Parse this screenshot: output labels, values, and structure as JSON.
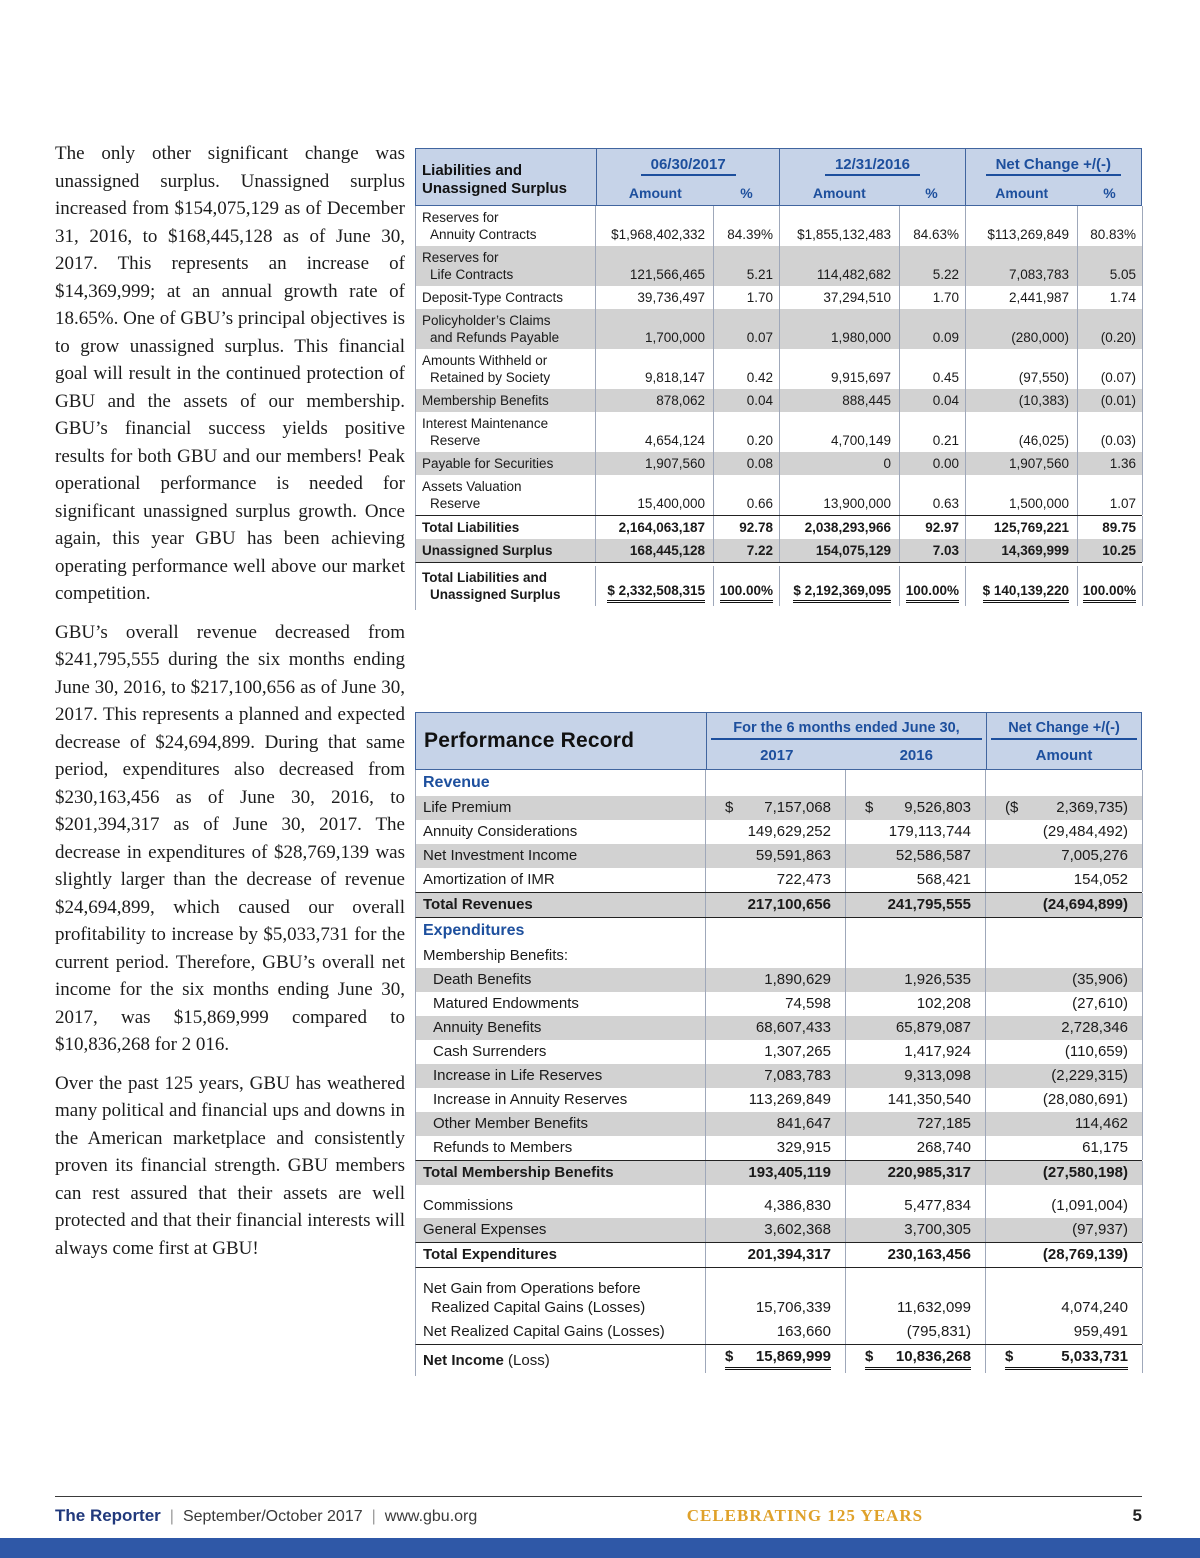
{
  "article": {
    "paragraphs": [
      "The only other significant change was unassigned surplus. Unassigned surplus increased from $154,075,129 as of December 31, 2016, to $168,445,128 as of June 30, 2017. This represents an increase of $14,369,999; at an annual growth rate of 18.65%. One of GBU’s principal objectives is to grow unassigned surplus. This financial goal will result in the continued protection of GBU and the assets of our membership. GBU’s financial success yields positive results for both GBU and our members! Peak operational performance is needed for significant unassigned surplus growth. Once again, this year GBU has been achieving operating performance well above our market competition.",
      "GBU’s overall revenue decreased from $241,795,555 during the six months ending June 30, 2016, to $217,100,656 as of June 30, 2017. This represents a planned and expected decrease of $24,694,899. During that same period, expenditures also decreased from $230,163,456 as of June 30, 2016, to $201,394,317 as of June 30, 2017. The decrease in expenditures of $28,769,139 was slightly larger than the decrease of revenue $24,694,899, which caused our overall profitability to increase by $5,033,731 for the current period. Therefore, GBU’s overall net income for the six months ending June 30, 2017, was $15,869,999 compared to $10,836,268 for 2 016.",
      "Over the past 125 years, GBU has weathered many political and financial ups and downs in the American marketplace and consistently proven its financial strength. GBU members can rest assured that their assets are well protected and that their financial interests will always come first at GBU!"
    ]
  },
  "liabilities_table": {
    "title": [
      "Liabilities and",
      "Unassigned Surplus"
    ],
    "groups": [
      {
        "label": "06/30/2017",
        "subs": [
          "Amount",
          "%"
        ]
      },
      {
        "label": "12/31/2016",
        "subs": [
          "Amount",
          "%"
        ]
      },
      {
        "label": "Net Change +/(-)",
        "subs": [
          "Amount",
          "%"
        ]
      }
    ],
    "rows": [
      {
        "label": [
          "Reserves for",
          "Annuity Contracts"
        ],
        "cells": [
          "$1,968,402,332",
          "84.39%",
          "$1,855,132,483",
          "84.63%",
          "$113,269,849",
          "80.83%"
        ]
      },
      {
        "label": [
          "Reserves for",
          "Life Contracts"
        ],
        "stripe": true,
        "cells": [
          "121,566,465",
          "5.21",
          "114,482,682",
          "5.22",
          "7,083,783",
          "5.05"
        ]
      },
      {
        "label": [
          "Deposit-Type Contracts"
        ],
        "cells": [
          "39,736,497",
          "1.70",
          "37,294,510",
          "1.70",
          "2,441,987",
          "1.74"
        ]
      },
      {
        "label": [
          "Policyholder’s Claims",
          "and Refunds Payable"
        ],
        "stripe": true,
        "cells": [
          "1,700,000",
          "0.07",
          "1,980,000",
          "0.09",
          "(280,000)",
          "(0.20)"
        ]
      },
      {
        "label": [
          "Amounts Withheld or",
          "Retained by Society"
        ],
        "cells": [
          "9,818,147",
          "0.42",
          "9,915,697",
          "0.45",
          "(97,550)",
          "(0.07)"
        ]
      },
      {
        "label": [
          "Membership Benefits"
        ],
        "stripe": true,
        "cells": [
          "878,062",
          "0.04",
          "888,445",
          "0.04",
          "(10,383)",
          "(0.01)"
        ]
      },
      {
        "label": [
          "Interest Maintenance",
          "Reserve"
        ],
        "cells": [
          "4,654,124",
          "0.20",
          "4,700,149",
          "0.21",
          "(46,025)",
          "(0.03)"
        ]
      },
      {
        "label": [
          "Payable for Securities"
        ],
        "stripe": true,
        "cells": [
          "1,907,560",
          "0.08",
          "0",
          "0.00",
          "1,907,560",
          "1.36"
        ]
      },
      {
        "label": [
          "Assets Valuation",
          "Reserve"
        ],
        "cells": [
          "15,400,000",
          "0.66",
          "13,900,000",
          "0.63",
          "1,500,000",
          "1.07"
        ]
      },
      {
        "label": [
          "Total Liabilities"
        ],
        "bold": true,
        "top": true,
        "cells": [
          "2,164,063,187",
          "92.78",
          "2,038,293,966",
          "92.97",
          "125,769,221",
          "89.75"
        ]
      },
      {
        "label": [
          "Unassigned Surplus"
        ],
        "bold": true,
        "stripe": true,
        "cells": [
          "168,445,128",
          "7.22",
          "154,075,129",
          "7.03",
          "14,369,999",
          "10.25"
        ]
      },
      {
        "label": [
          "Total Liabilities and",
          "Unassigned Surplus"
        ],
        "bold": true,
        "top": true,
        "dbl": true,
        "cells": [
          "$ 2,332,508,315",
          "100.00%",
          "$ 2,192,369,095",
          "100.00%",
          "$ 140,139,220",
          "100.00%"
        ]
      }
    ]
  },
  "performance_table": {
    "title": "Performance Record",
    "period_header": "For the 6 months ended June 30,",
    "period_cols": [
      "2017",
      "2016"
    ],
    "change_header": "Net Change +/(-)",
    "change_col": "Amount",
    "rows": [
      {
        "type": "section",
        "label": "Revenue"
      },
      {
        "type": "data",
        "stripe": true,
        "label": "Life Premium",
        "cells": [
          {
            "pre": "$",
            "val": "7,157,068"
          },
          {
            "pre": "$",
            "val": "9,526,803"
          },
          {
            "pre": "($",
            "val": "2,369,735)"
          }
        ]
      },
      {
        "type": "data",
        "label": "Annuity Considerations",
        "cells": [
          "149,629,252",
          "179,113,744",
          "(29,484,492)"
        ]
      },
      {
        "type": "data",
        "stripe": true,
        "label": "Net Investment Income",
        "cells": [
          "59,591,863",
          "52,586,587",
          "7,005,276"
        ]
      },
      {
        "type": "data",
        "label": "Amortization of IMR",
        "cells": [
          "722,473",
          "568,421",
          "154,052"
        ]
      },
      {
        "type": "data",
        "bold": true,
        "stripe": true,
        "top": true,
        "bottom": true,
        "label": "Total Revenues",
        "cells": [
          "217,100,656",
          "241,795,555",
          "(24,694,899)"
        ]
      },
      {
        "type": "section",
        "label": "Expenditures"
      },
      {
        "type": "plain",
        "label": "Membership Benefits:"
      },
      {
        "type": "data",
        "stripe": true,
        "indent": true,
        "label": "Death Benefits",
        "cells": [
          "1,890,629",
          "1,926,535",
          "(35,906)"
        ]
      },
      {
        "type": "data",
        "indent": true,
        "label": "Matured Endowments",
        "cells": [
          "74,598",
          "102,208",
          "(27,610)"
        ]
      },
      {
        "type": "data",
        "stripe": true,
        "indent": true,
        "label": "Annuity Benefits",
        "cells": [
          "68,607,433",
          "65,879,087",
          "2,728,346"
        ]
      },
      {
        "type": "data",
        "indent": true,
        "label": "Cash Surrenders",
        "cells": [
          "1,307,265",
          "1,417,924",
          "(110,659)"
        ]
      },
      {
        "type": "data",
        "stripe": true,
        "indent": true,
        "label": "Increase in Life Reserves",
        "cells": [
          "7,083,783",
          "9,313,098",
          "(2,229,315)"
        ]
      },
      {
        "type": "data",
        "indent": true,
        "label": "Increase in Annuity Reserves",
        "cells": [
          "113,269,849",
          "141,350,540",
          "(28,080,691)"
        ]
      },
      {
        "type": "data",
        "stripe": true,
        "indent": true,
        "label": "Other Member Benefits",
        "cells": [
          "841,647",
          "727,185",
          "114,462"
        ]
      },
      {
        "type": "data",
        "indent": true,
        "label": "Refunds to Members",
        "cells": [
          "329,915",
          "268,740",
          "61,175"
        ]
      },
      {
        "type": "data",
        "bold": true,
        "stripe": true,
        "top": true,
        "label": "Total Membership Benefits",
        "cells": [
          "193,405,119",
          "220,985,317",
          "(27,580,198)"
        ]
      },
      {
        "type": "data",
        "gap": true,
        "label": "Commissions",
        "cells": [
          "4,386,830",
          "5,477,834",
          "(1,091,004)"
        ]
      },
      {
        "type": "data",
        "stripe": true,
        "label": "General Expenses",
        "cells": [
          "3,602,368",
          "3,700,305",
          "(97,937)"
        ]
      },
      {
        "type": "data",
        "bold": true,
        "top": true,
        "bottom": true,
        "label": "Total Expenditures",
        "cells": [
          "201,394,317",
          "230,163,456",
          "(28,769,139)"
        ]
      },
      {
        "type": "data",
        "gap": true,
        "label": [
          "Net Gain from Operations before",
          "Realized Capital Gains (Losses)"
        ],
        "cells": [
          "15,706,339",
          "11,632,099",
          "4,074,240"
        ]
      },
      {
        "type": "data",
        "label": "Net Realized Capital Gains (Losses)",
        "cells": [
          "163,660",
          "(795,831)",
          "959,491"
        ]
      },
      {
        "type": "data",
        "bold": true,
        "top": true,
        "dbl": true,
        "label": "Net Income",
        "label_suffix": " (Loss)",
        "cells": [
          {
            "pre": "$",
            "val": "15,869,999"
          },
          {
            "pre": "$",
            "val": "10,836,268"
          },
          {
            "pre": "$",
            "val": "5,033,731"
          }
        ]
      }
    ]
  },
  "footer": {
    "brand": "The Reporter",
    "separator": "|",
    "issue": "September/October 2017",
    "website": "www.gbu.org",
    "banner": "CELEBRATING 125 YEARS",
    "page_number": "5"
  },
  "colors": {
    "accent_blue": "#1d4f9d",
    "table_header_bg": "#c6d3e8",
    "stripe_gray": "#d2d2d2",
    "banner_gold": "#dfa12a",
    "bottom_bar_blue": "#2f58a7"
  }
}
